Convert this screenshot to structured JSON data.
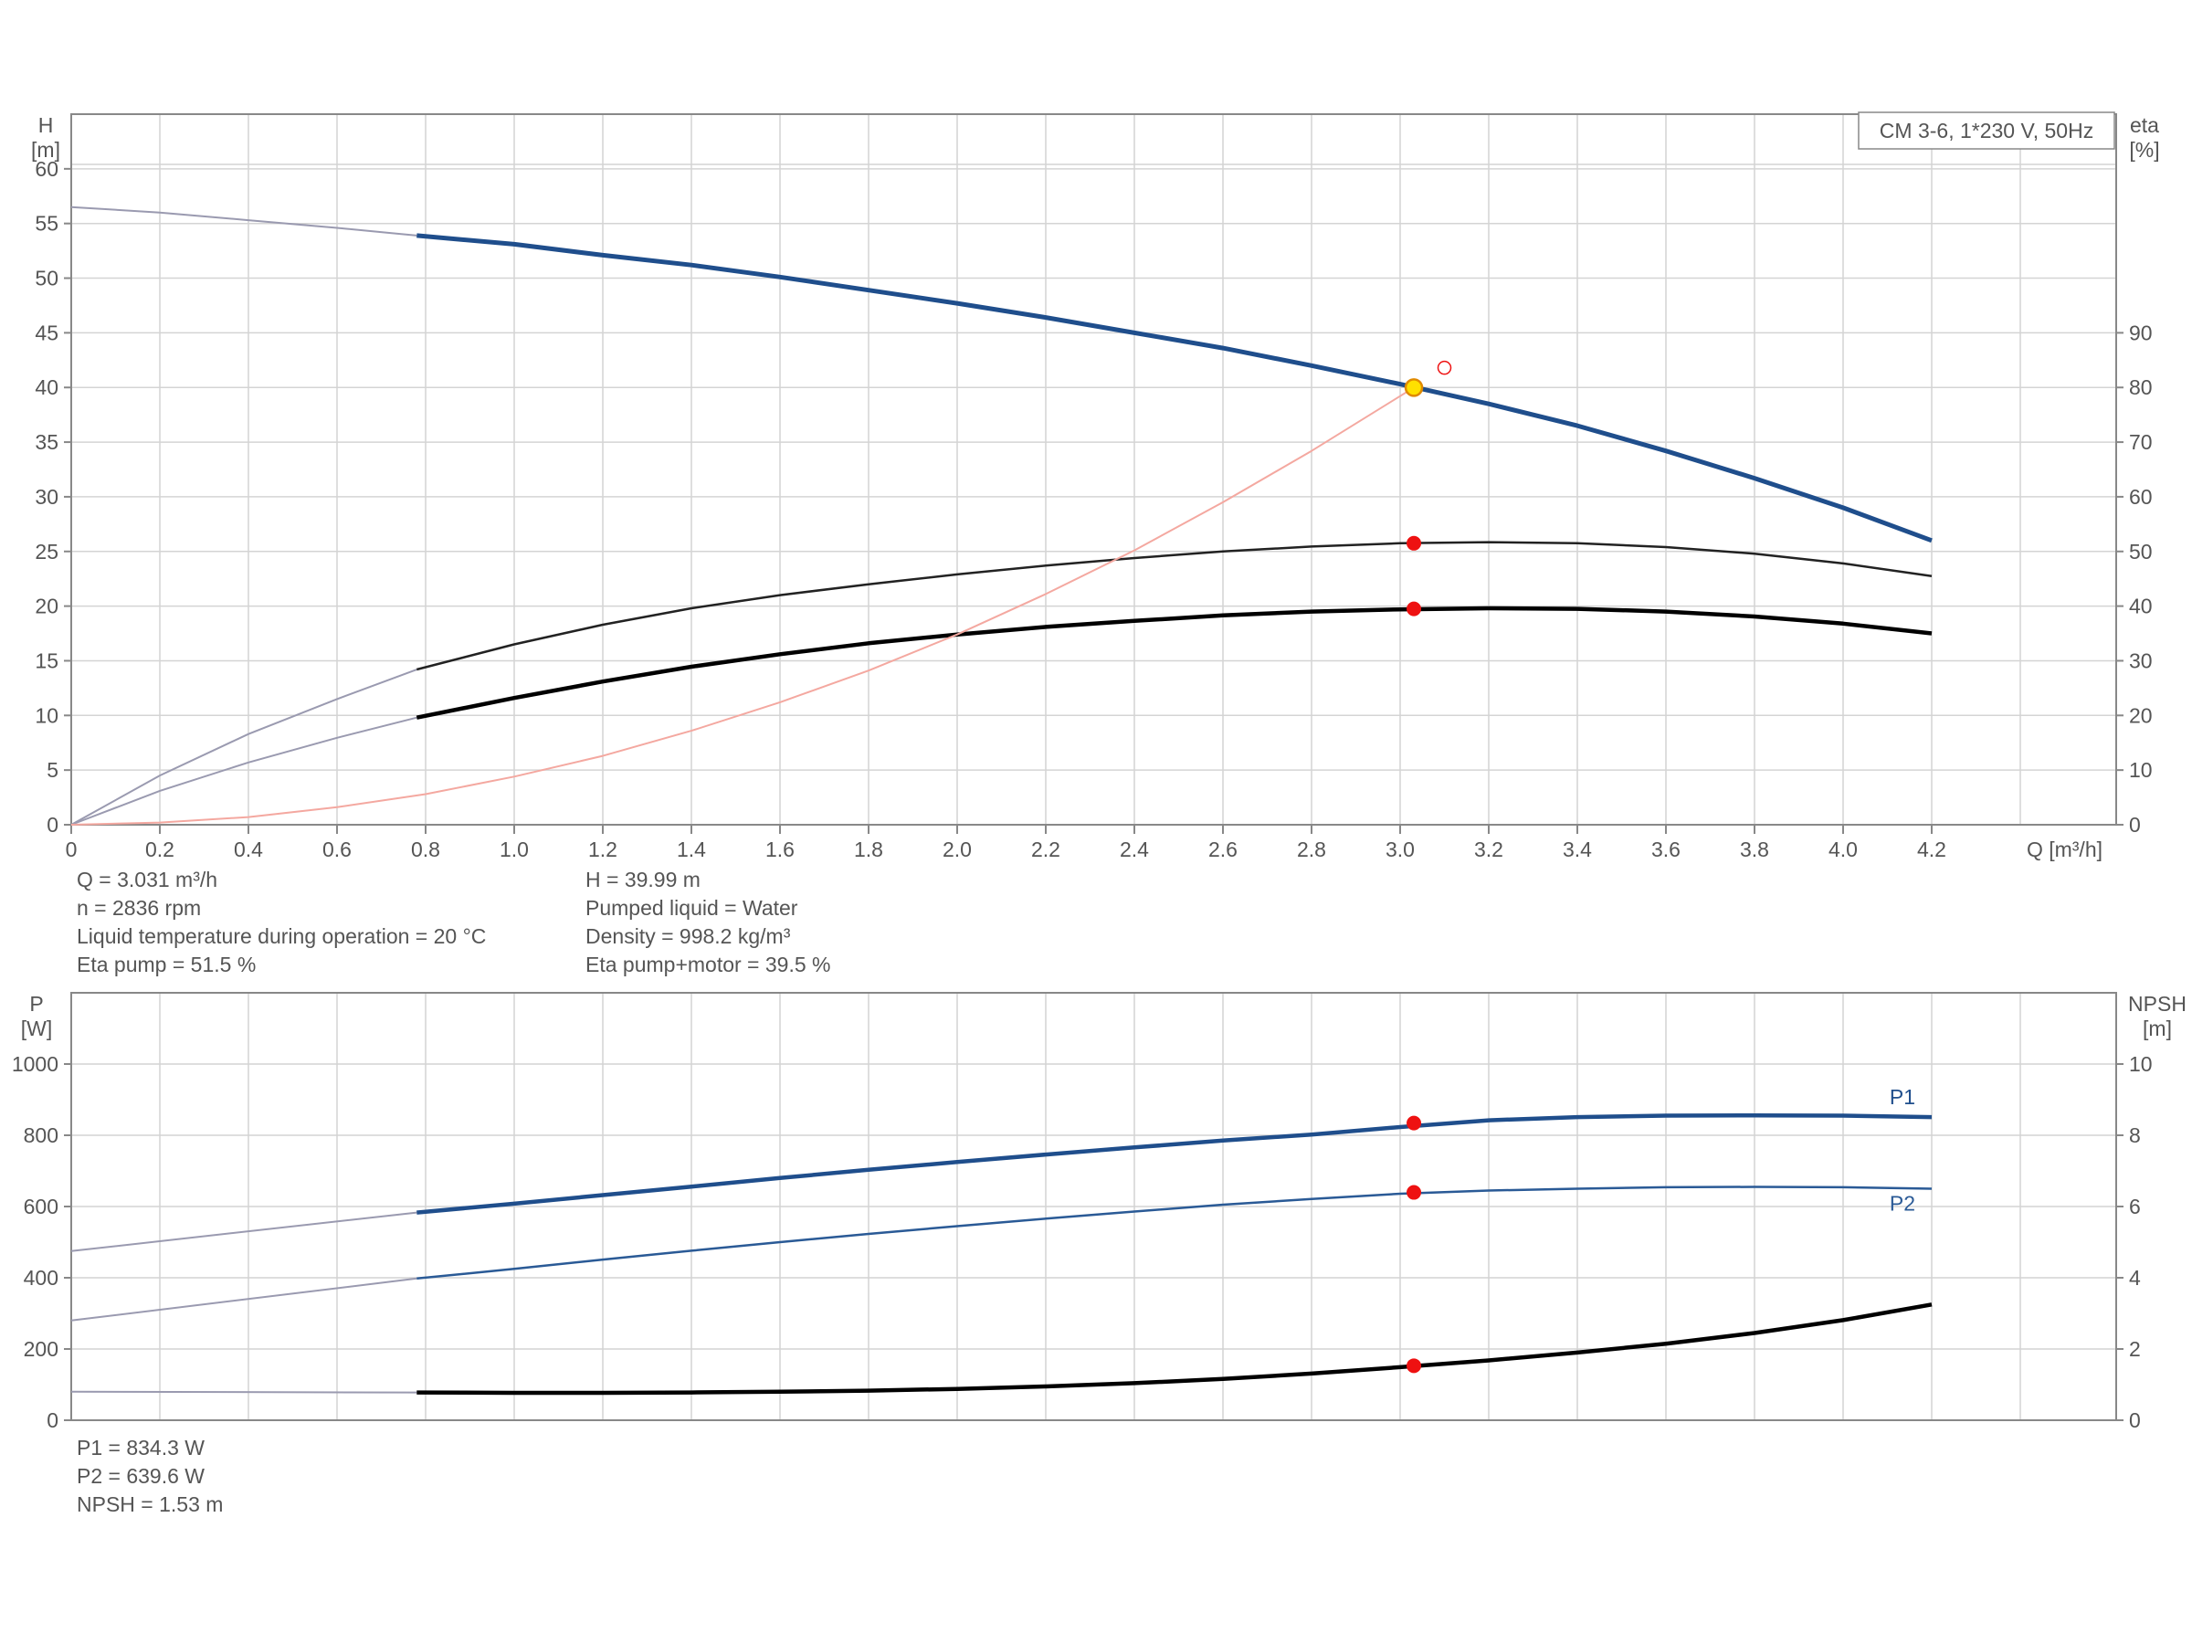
{
  "chart_data": [
    {
      "type": "line",
      "legend_box": "CM 3-6, 1*230 V, 50Hz",
      "left_axis": {
        "label_line1": "H",
        "label_line2": "[m]",
        "ylim": [
          0,
          65
        ],
        "ticks": [
          "0",
          "5",
          "10",
          "15",
          "20",
          "25",
          "30",
          "35",
          "40",
          "45",
          "50",
          "55",
          "60"
        ]
      },
      "right_axis": {
        "label_line1": "eta",
        "label_line2": "[%]",
        "ylim": [
          0,
          130
        ],
        "ticks": [
          "0",
          "10",
          "20",
          "30",
          "40",
          "50",
          "60",
          "70",
          "80",
          "90"
        ]
      },
      "x_axis": {
        "label": "Q [m³/h]",
        "xlim": [
          0,
          4.6
        ],
        "ticks": [
          "0",
          "0.2",
          "0.4",
          "0.6",
          "0.8",
          "1.0",
          "1.2",
          "1.4",
          "1.6",
          "1.8",
          "2.0",
          "2.2",
          "2.4",
          "2.6",
          "2.8",
          "3.0",
          "3.2",
          "3.4",
          "3.6",
          "3.8",
          "4.0",
          "4.2"
        ]
      },
      "grid": true,
      "series": [
        {
          "id": "H",
          "axis": "left",
          "color": "#1f4e8c",
          "x": [
            0.78,
            1.0,
            1.2,
            1.4,
            1.6,
            1.8,
            2.0,
            2.2,
            2.4,
            2.6,
            2.8,
            3.0,
            3.2,
            3.4,
            3.6,
            3.8,
            4.0,
            4.2
          ],
          "y": [
            53.9,
            53.1,
            52.1,
            51.2,
            50.1,
            48.9,
            47.7,
            46.4,
            45.0,
            43.6,
            42.0,
            40.3,
            38.5,
            36.5,
            34.2,
            31.7,
            29.0,
            26.0
          ],
          "ext_x": [
            0,
            0.2,
            0.4,
            0.6,
            0.78
          ],
          "ext_y": [
            56.5,
            56.0,
            55.3,
            54.6,
            53.9
          ]
        },
        {
          "id": "eta_pump",
          "axis": "right",
          "color": "#222222",
          "x": [
            0.78,
            1.0,
            1.2,
            1.4,
            1.6,
            1.8,
            2.0,
            2.2,
            2.4,
            2.6,
            2.8,
            3.0,
            3.2,
            3.4,
            3.6,
            3.8,
            4.0,
            4.2
          ],
          "y": [
            28.4,
            33.0,
            36.6,
            39.6,
            42.0,
            44.0,
            45.8,
            47.4,
            48.8,
            50.0,
            50.9,
            51.5,
            51.7,
            51.5,
            50.8,
            49.6,
            47.8,
            45.5
          ],
          "ext_x": [
            0,
            0.2,
            0.4,
            0.6,
            0.78
          ],
          "ext_y": [
            0,
            9.0,
            16.6,
            23.0,
            28.4
          ]
        },
        {
          "id": "eta_pump_motor",
          "axis": "right",
          "color": "#000000",
          "x": [
            0.78,
            1.0,
            1.2,
            1.4,
            1.6,
            1.8,
            2.0,
            2.2,
            2.4,
            2.6,
            2.8,
            3.0,
            3.2,
            3.4,
            3.6,
            3.8,
            4.0,
            4.2
          ],
          "y": [
            19.6,
            23.2,
            26.2,
            28.9,
            31.2,
            33.2,
            34.8,
            36.2,
            37.3,
            38.3,
            39.0,
            39.4,
            39.6,
            39.5,
            39.0,
            38.1,
            36.8,
            35.0
          ],
          "ext_x": [
            0,
            0.2,
            0.4,
            0.6,
            0.78
          ],
          "ext_y": [
            0,
            6.2,
            11.4,
            15.9,
            19.6
          ]
        },
        {
          "id": "system_curve",
          "axis": "left",
          "color": "#f4a8a0",
          "x": [
            0,
            0.2,
            0.4,
            0.6,
            0.8,
            1.0,
            1.2,
            1.4,
            1.6,
            1.8,
            2.0,
            2.2,
            2.4,
            2.6,
            2.8,
            3.031
          ],
          "y": [
            0,
            0.2,
            0.7,
            1.6,
            2.8,
            4.4,
            6.3,
            8.6,
            11.2,
            14.1,
            17.4,
            21.1,
            25.1,
            29.5,
            34.2,
            39.99
          ]
        }
      ],
      "duty_point": {
        "q": 3.031,
        "h": 39.99,
        "eta_pump": 51.5,
        "eta_pump_motor": 39.5
      },
      "requested_point": {
        "q": 3.1,
        "h": 41.8
      }
    },
    {
      "type": "line",
      "left_axis": {
        "label_line1": "P",
        "label_line2": "[W]",
        "ylim": [
          0,
          1200
        ],
        "ticks": [
          "0",
          "200",
          "400",
          "600",
          "800",
          "1000"
        ]
      },
      "right_axis": {
        "label_line1": "NPSH",
        "label_line2": "[m]",
        "ylim": [
          0,
          12
        ],
        "ticks": [
          "0",
          "2",
          "4",
          "6",
          "8",
          "10"
        ]
      },
      "x_axis": {
        "xlim": [
          0,
          4.6
        ]
      },
      "grid": true,
      "series": [
        {
          "id": "P1",
          "name": "P1",
          "axis": "left",
          "color": "#1f4e8c",
          "x": [
            0.78,
            1.0,
            1.2,
            1.4,
            1.6,
            1.8,
            2.0,
            2.2,
            2.4,
            2.6,
            2.8,
            3.0,
            3.2,
            3.4,
            3.6,
            3.8,
            4.0,
            4.2
          ],
          "y": [
            583,
            608,
            632,
            656,
            680,
            703,
            725,
            746,
            766,
            785,
            802,
            823,
            842,
            851,
            855,
            856,
            855,
            851
          ],
          "ext_x": [
            0,
            0.78
          ],
          "ext_y": [
            475,
            583
          ]
        },
        {
          "id": "P2",
          "name": "P2",
          "axis": "left",
          "color": "#2a5a96",
          "x": [
            0.78,
            1.0,
            1.2,
            1.4,
            1.6,
            1.8,
            2.0,
            2.2,
            2.4,
            2.6,
            2.8,
            3.0,
            3.2,
            3.4,
            3.6,
            3.8,
            4.0,
            4.2
          ],
          "y": [
            398,
            425,
            451,
            476,
            500,
            523,
            545,
            566,
            586,
            605,
            621,
            636,
            645,
            650,
            654,
            655,
            654,
            650
          ],
          "ext_x": [
            0,
            0.78
          ],
          "ext_y": [
            280,
            398
          ]
        },
        {
          "id": "NPSH",
          "axis": "right",
          "color": "#000000",
          "x": [
            0.78,
            1.0,
            1.2,
            1.4,
            1.6,
            1.8,
            2.0,
            2.2,
            2.4,
            2.6,
            2.8,
            3.0,
            3.2,
            3.4,
            3.6,
            3.8,
            4.0,
            4.2
          ],
          "y": [
            0.78,
            0.77,
            0.77,
            0.78,
            0.8,
            0.83,
            0.88,
            0.95,
            1.04,
            1.16,
            1.31,
            1.49,
            1.68,
            1.9,
            2.15,
            2.45,
            2.81,
            3.25
          ],
          "ext_x": [
            0,
            0.78
          ],
          "ext_y": [
            0.8,
            0.78
          ]
        }
      ],
      "duty_point": {
        "q": 3.031,
        "P1": 834.3,
        "P2": 639.6,
        "NPSH": 1.53
      }
    }
  ],
  "info_top_left": [
    "Q = 3.031 m³/h",
    "n = 2836 rpm",
    "Liquid temperature during operation = 20 °C",
    "Eta pump = 51.5 %"
  ],
  "info_top_right": [
    "H = 39.99 m",
    "Pumped liquid = Water",
    "Density = 998.2 kg/m³",
    "Eta pump+motor = 39.5 %"
  ],
  "info_bottom": [
    "P1 = 834.3 W",
    "P2 = 639.6 W",
    "NPSH = 1.53 m"
  ],
  "colors": {
    "grid": "#d4d4d4",
    "axis": "#888888",
    "text": "#555555",
    "duty_marker": "#ee1111",
    "duty_h_marker": "#ffe000"
  }
}
